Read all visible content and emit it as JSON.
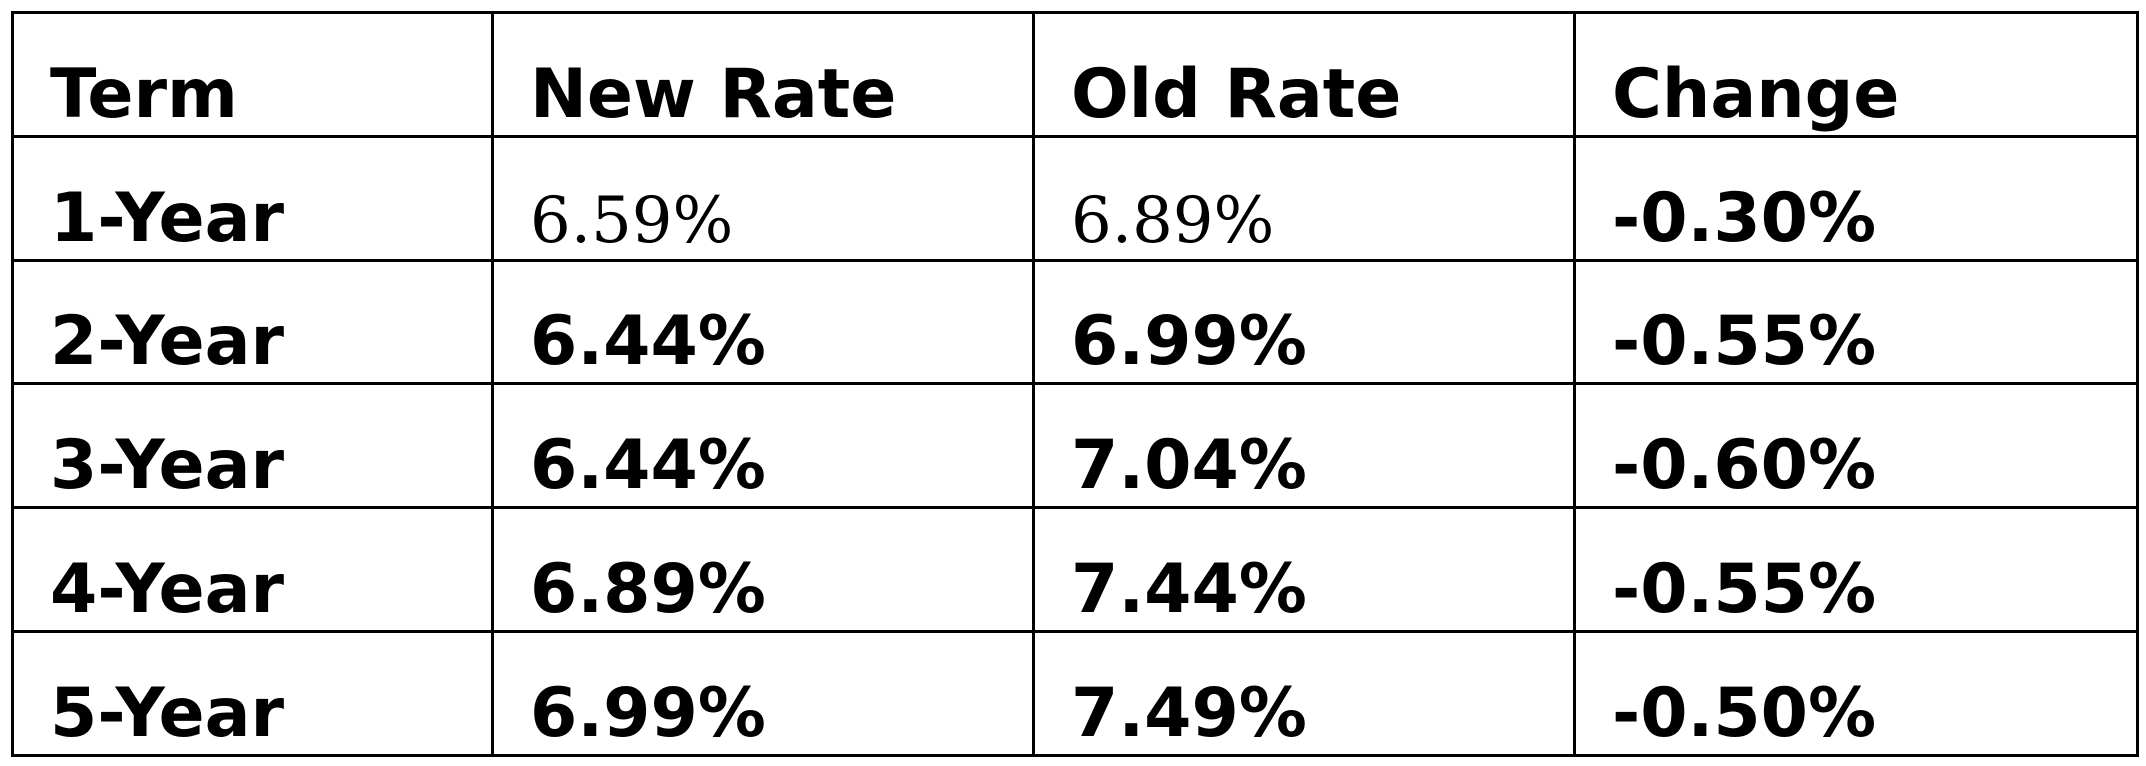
{
  "table": {
    "header": [
      "Term",
      "New Rate",
      "Old Rate",
      "Change"
    ],
    "rows": [
      [
        "1-Year",
        "6.59%",
        "6.89%",
        "-0.30%"
      ],
      [
        "2-Year",
        "6.44%",
        "6.99%",
        "-0.55%"
      ],
      [
        "3-Year",
        "6.44%",
        "7.04%",
        "-0.60%"
      ],
      [
        "4-Year",
        "6.89%",
        "7.44%",
        "-0.55%"
      ],
      [
        "5-Year",
        "6.99%",
        "7.49%",
        "-0.50%"
      ]
    ]
  }
}
